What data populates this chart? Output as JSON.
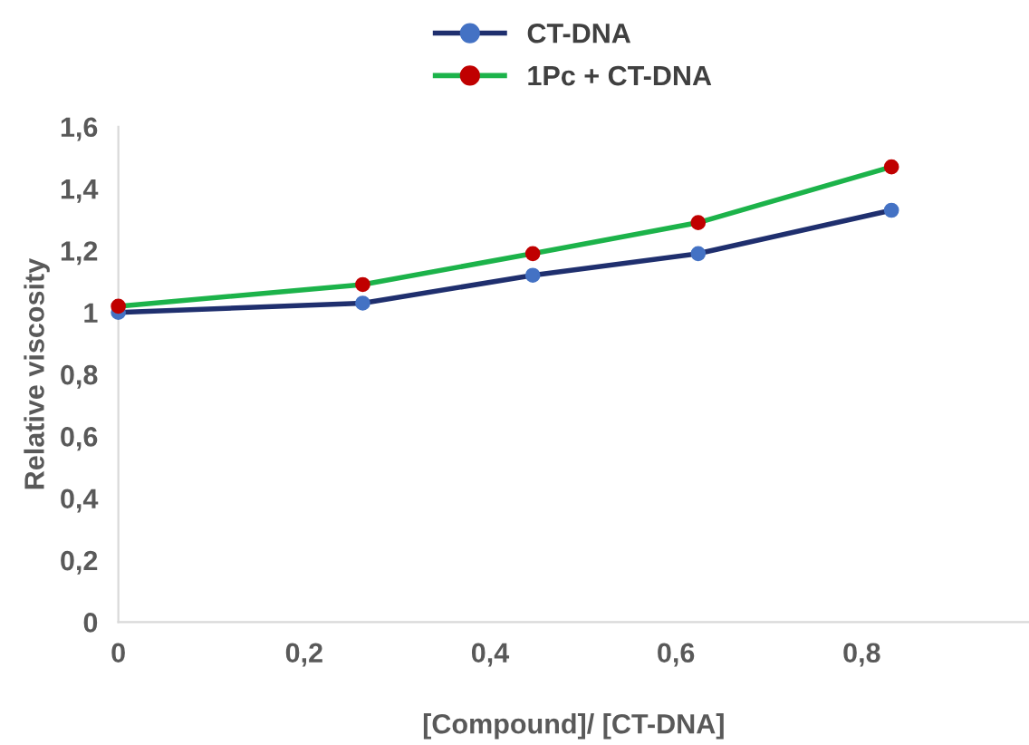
{
  "chart_data": {
    "type": "line",
    "xlabel": "[Compound]/ [CT-DNA]",
    "ylabel": "Relative viscosity",
    "x": [
      0,
      0.263,
      0.446,
      0.624,
      0.832
    ],
    "series": [
      {
        "name": "CT-DNA",
        "color": "#1f2f6e",
        "colors": [
          "#4472c4",
          "#4472c4",
          "#4472c4",
          "#4472c4",
          "#4472c4"
        ],
        "values": [
          1.0,
          1.03,
          1.12,
          1.19,
          1.33
        ]
      },
      {
        "name": "1Pc + CT-DNA",
        "color": "#1cb34a",
        "colors": [
          "#c00000",
          "#c00000",
          "#c00000",
          "#c00000",
          "#c00000"
        ],
        "values": [
          1.02,
          1.09,
          1.19,
          1.29,
          1.47
        ]
      }
    ],
    "xlim": [
      0,
      0.98
    ],
    "ylim": [
      0,
      1.6
    ],
    "xticks": [
      0,
      {
        "value": 0.2,
        "label": "0,2"
      },
      {
        "value": 0.4,
        "label": "0,4"
      },
      {
        "value": 0.6,
        "label": "0,6"
      },
      {
        "value": 0.8,
        "label": "0,8"
      }
    ],
    "yticks": [
      0,
      {
        "value": 0.2,
        "label": "0,2"
      },
      {
        "value": 0.4,
        "label": "0,4"
      },
      {
        "value": 0.6,
        "label": "0,6"
      },
      {
        "value": 0.8,
        "label": "0,8"
      },
      1,
      {
        "value": 1.2,
        "label": "1,2"
      },
      {
        "value": 1.4,
        "label": "1,4"
      },
      {
        "value": 1.6,
        "label": "1,6"
      }
    ],
    "grid": false,
    "legend": "top",
    "marker": "circle",
    "line_style": "solid"
  }
}
